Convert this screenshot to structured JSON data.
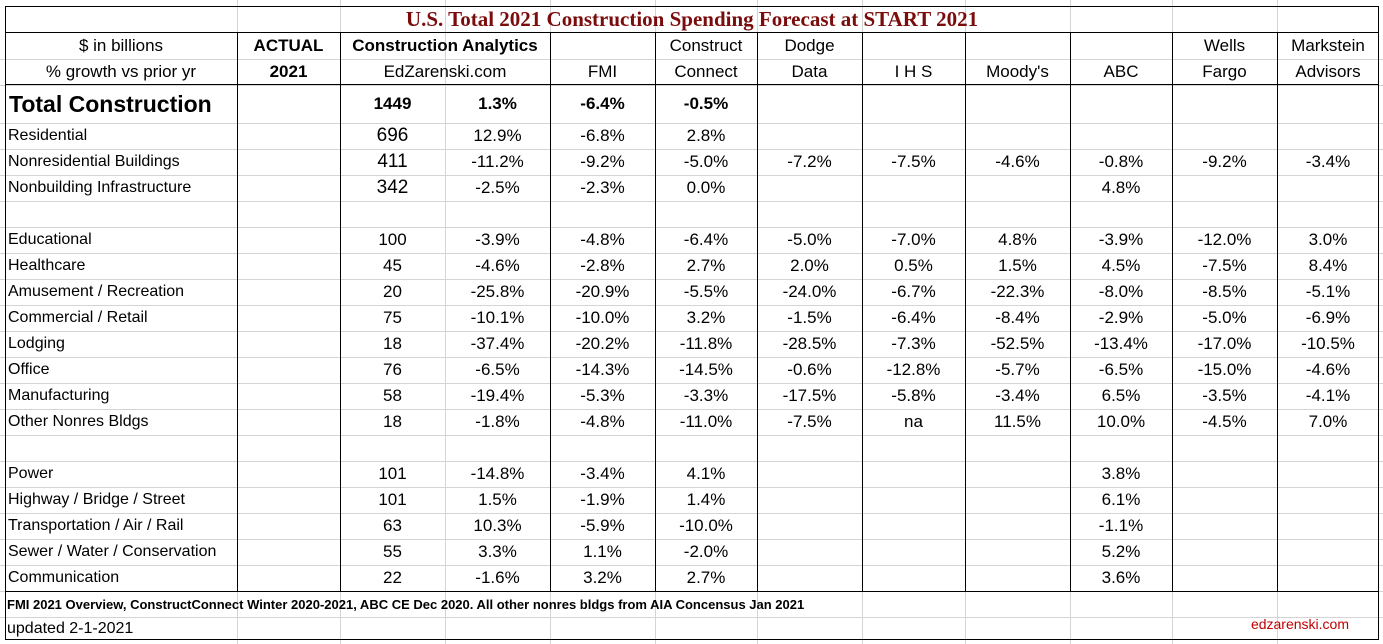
{
  "title": "U.S. Total 2021 Construction Spending Forecast at START 2021",
  "header": {
    "row1": {
      "label": "$ in billions",
      "actual": "ACTUAL",
      "ca": "Construction Analytics",
      "fmi": "",
      "cc": "Construct",
      "dodge": "Dodge",
      "ihs": "",
      "moodys": "",
      "abc": "",
      "wells": "Wells",
      "markstein": "Markstein"
    },
    "row2": {
      "label": "% growth vs prior yr",
      "actual": "2021",
      "ca": "EdZarenski.com",
      "fmi": "FMI",
      "cc": "Connect",
      "dodge": "Data",
      "ihs": "I H S",
      "moodys": "Moody's",
      "abc": "ABC",
      "wells": "Fargo",
      "markstein": "Advisors"
    }
  },
  "rows": [
    {
      "label": "Total Construction",
      "actual": "",
      "ca_value": "1449",
      "ca_pct": "1.3%",
      "fmi": "-6.4%",
      "cc": "-0.5%",
      "dodge": "",
      "ihs": "",
      "moodys": "",
      "abc": "",
      "wells": "",
      "markstein": ""
    },
    {
      "label": "Residential",
      "actual": "",
      "ca_value": "696",
      "ca_pct": "12.9%",
      "fmi": "-6.8%",
      "cc": "2.8%",
      "dodge": "",
      "ihs": "",
      "moodys": "",
      "abc": "",
      "wells": "",
      "markstein": ""
    },
    {
      "label": "Nonresidential Buildings",
      "actual": "",
      "ca_value": "411",
      "ca_pct": "-11.2%",
      "fmi": "-9.2%",
      "cc": "-5.0%",
      "dodge": "-7.2%",
      "ihs": "-7.5%",
      "moodys": "-4.6%",
      "abc": "-0.8%",
      "wells": "-9.2%",
      "markstein": "-3.4%"
    },
    {
      "label": "Nonbuilding Infrastructure",
      "actual": "",
      "ca_value": "342",
      "ca_pct": "-2.5%",
      "fmi": "-2.3%",
      "cc": "0.0%",
      "dodge": "",
      "ihs": "",
      "moodys": "",
      "abc": "4.8%",
      "wells": "",
      "markstein": ""
    },
    {
      "label": "",
      "actual": "",
      "ca_value": "",
      "ca_pct": "",
      "fmi": "",
      "cc": "",
      "dodge": "",
      "ihs": "",
      "moodys": "",
      "abc": "",
      "wells": "",
      "markstein": ""
    },
    {
      "label": "Educational",
      "actual": "",
      "ca_value": "100",
      "ca_pct": "-3.9%",
      "fmi": "-4.8%",
      "cc": "-6.4%",
      "dodge": "-5.0%",
      "ihs": "-7.0%",
      "moodys": "4.8%",
      "abc": "-3.9%",
      "wells": "-12.0%",
      "markstein": "3.0%"
    },
    {
      "label": "Healthcare",
      "actual": "",
      "ca_value": "45",
      "ca_pct": "-4.6%",
      "fmi": "-2.8%",
      "cc": "2.7%",
      "dodge": "2.0%",
      "ihs": "0.5%",
      "moodys": "1.5%",
      "abc": "4.5%",
      "wells": "-7.5%",
      "markstein": "8.4%"
    },
    {
      "label": "Amusement / Recreation",
      "actual": "",
      "ca_value": "20",
      "ca_pct": "-25.8%",
      "fmi": "-20.9%",
      "cc": "-5.5%",
      "dodge": "-24.0%",
      "ihs": "-6.7%",
      "moodys": "-22.3%",
      "abc": "-8.0%",
      "wells": "-8.5%",
      "markstein": "-5.1%"
    },
    {
      "label": "Commercial / Retail",
      "actual": "",
      "ca_value": "75",
      "ca_pct": "-10.1%",
      "fmi": "-10.0%",
      "cc": "3.2%",
      "dodge": "-1.5%",
      "ihs": "-6.4%",
      "moodys": "-8.4%",
      "abc": "-2.9%",
      "wells": "-5.0%",
      "markstein": "-6.9%"
    },
    {
      "label": "Lodging",
      "actual": "",
      "ca_value": "18",
      "ca_pct": "-37.4%",
      "fmi": "-20.2%",
      "cc": "-11.8%",
      "dodge": "-28.5%",
      "ihs": "-7.3%",
      "moodys": "-52.5%",
      "abc": "-13.4%",
      "wells": "-17.0%",
      "markstein": "-10.5%"
    },
    {
      "label": "Office",
      "actual": "",
      "ca_value": "76",
      "ca_pct": "-6.5%",
      "fmi": "-14.3%",
      "cc": "-14.5%",
      "dodge": "-0.6%",
      "ihs": "-12.8%",
      "moodys": "-5.7%",
      "abc": "-6.5%",
      "wells": "-15.0%",
      "markstein": "-4.6%"
    },
    {
      "label": "Manufacturing",
      "actual": "",
      "ca_value": "58",
      "ca_pct": "-19.4%",
      "fmi": "-5.3%",
      "cc": "-3.3%",
      "dodge": "-17.5%",
      "ihs": "-5.8%",
      "moodys": "-3.4%",
      "abc": "6.5%",
      "wells": "-3.5%",
      "markstein": "-4.1%"
    },
    {
      "label": "Other Nonres Bldgs",
      "actual": "",
      "ca_value": "18",
      "ca_pct": "-1.8%",
      "fmi": "-4.8%",
      "cc": "-11.0%",
      "dodge": "-7.5%",
      "ihs": "na",
      "moodys": "11.5%",
      "abc": "10.0%",
      "wells": "-4.5%",
      "markstein": "7.0%"
    },
    {
      "label": "",
      "actual": "",
      "ca_value": "",
      "ca_pct": "",
      "fmi": "",
      "cc": "",
      "dodge": "",
      "ihs": "",
      "moodys": "",
      "abc": "",
      "wells": "",
      "markstein": ""
    },
    {
      "label": "Power",
      "actual": "",
      "ca_value": "101",
      "ca_pct": "-14.8%",
      "fmi": "-3.4%",
      "cc": "4.1%",
      "dodge": "",
      "ihs": "",
      "moodys": "",
      "abc": "3.8%",
      "wells": "",
      "markstein": ""
    },
    {
      "label": "Highway / Bridge / Street",
      "actual": "",
      "ca_value": "101",
      "ca_pct": "1.5%",
      "fmi": "-1.9%",
      "cc": "1.4%",
      "dodge": "",
      "ihs": "",
      "moodys": "",
      "abc": "6.1%",
      "wells": "",
      "markstein": ""
    },
    {
      "label": "Transportation / Air / Rail",
      "actual": "",
      "ca_value": "63",
      "ca_pct": "10.3%",
      "fmi": "-5.9%",
      "cc": "-10.0%",
      "dodge": "",
      "ihs": "",
      "moodys": "",
      "abc": "-1.1%",
      "wells": "",
      "markstein": ""
    },
    {
      "label": "Sewer / Water / Conservation",
      "actual": "",
      "ca_value": "55",
      "ca_pct": "3.3%",
      "fmi": "1.1%",
      "cc": "-2.0%",
      "dodge": "",
      "ihs": "",
      "moodys": "",
      "abc": "5.2%",
      "wells": "",
      "markstein": ""
    },
    {
      "label": "Communication",
      "actual": "",
      "ca_value": "22",
      "ca_pct": "-1.6%",
      "fmi": "3.2%",
      "cc": "2.7%",
      "dodge": "",
      "ihs": "",
      "moodys": "",
      "abc": "3.6%",
      "wells": "",
      "markstein": ""
    }
  ],
  "footer": {
    "sources_note": "FMI 2021 Overview, ConstructConnect Winter 2020-2021, ABC CE Dec 2020. All other nonres bldgs from AIA Concensus Jan 2021",
    "updated": "updated 2-1-2021",
    "site": "edzarenski.com"
  },
  "colors": {
    "title": "#7b0c0c",
    "site_link": "#c00000",
    "gridline": "#d4d4d4",
    "border": "#000000"
  }
}
